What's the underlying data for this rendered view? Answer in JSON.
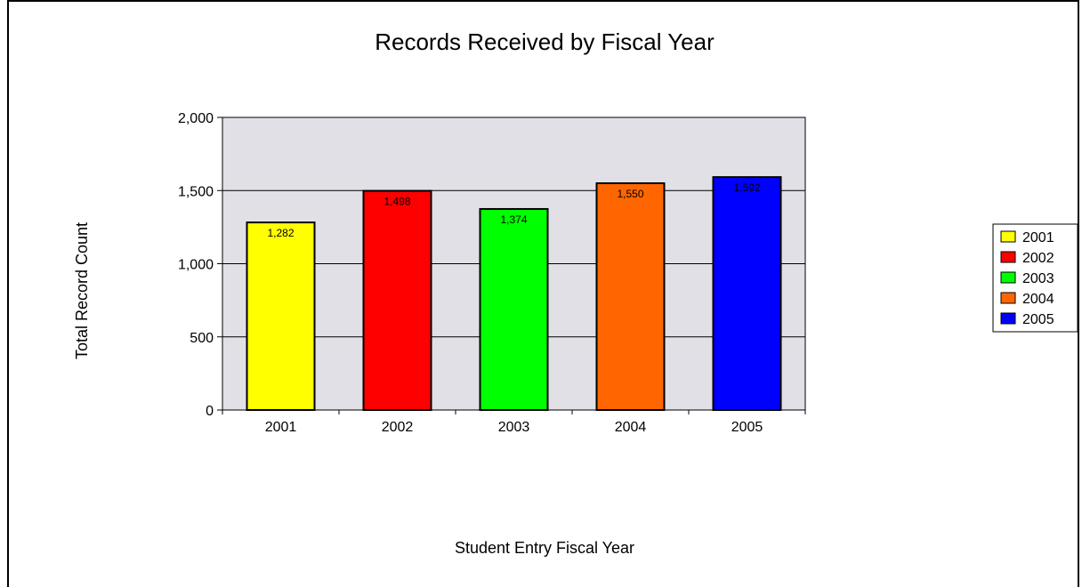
{
  "chart_data": {
    "type": "bar",
    "title": "Records Received by Fiscal Year",
    "xlabel": "Student Entry Fiscal Year",
    "ylabel": "Total Record Count",
    "categories": [
      "2001",
      "2002",
      "2003",
      "2004",
      "2005"
    ],
    "values": [
      1282,
      1498,
      1374,
      1550,
      1592
    ],
    "value_labels": [
      "1,282",
      "1,498",
      "1,374",
      "1,550",
      "1,592"
    ],
    "colors": [
      "#ffff00",
      "#ff0000",
      "#00ff00",
      "#ff6600",
      "#0000ff"
    ],
    "ylim": [
      0,
      2000
    ],
    "yticks": [
      0,
      500,
      1000,
      1500,
      2000
    ],
    "ytick_labels": [
      "0",
      "500",
      "1,000",
      "1,500",
      "2,000"
    ],
    "grid": true,
    "plot_background": "#e0e0e6",
    "legend": {
      "placement": "right",
      "entries": [
        "2001",
        "2002",
        "2003",
        "2004",
        "2005"
      ]
    }
  }
}
